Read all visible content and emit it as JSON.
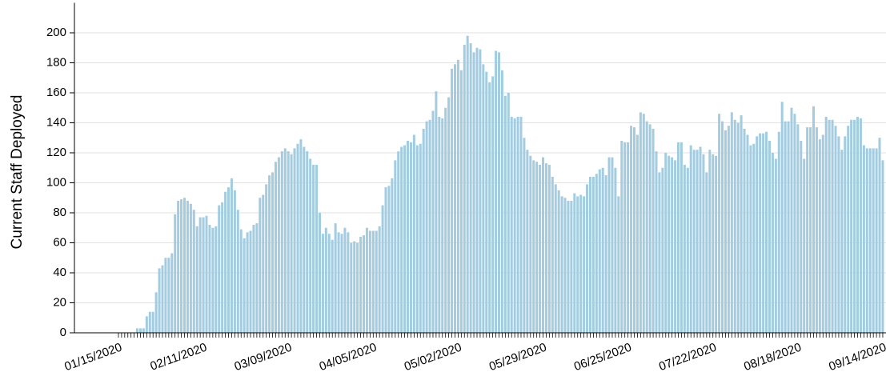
{
  "chart_data": {
    "type": "bar",
    "y_label": "Current Staff Deployed",
    "color": "#a3cce0",
    "grid": true,
    "ylim": [
      0,
      220
    ],
    "yticks": [
      0,
      20,
      40,
      60,
      80,
      100,
      120,
      140,
      160,
      180,
      200
    ],
    "categories": [
      "01/15/2020",
      null,
      null,
      null,
      null,
      null,
      null,
      null,
      null,
      null,
      null,
      null,
      null,
      null,
      null,
      null,
      null,
      null,
      null,
      null,
      null,
      null,
      null,
      null,
      null,
      null,
      null,
      "02/11/2020",
      null,
      null,
      null,
      null,
      null,
      null,
      null,
      null,
      null,
      null,
      null,
      null,
      null,
      null,
      null,
      null,
      null,
      null,
      null,
      null,
      null,
      null,
      null,
      null,
      null,
      null,
      "03/09/2020",
      null,
      null,
      null,
      null,
      null,
      null,
      null,
      null,
      null,
      null,
      null,
      null,
      null,
      null,
      null,
      null,
      null,
      null,
      null,
      null,
      null,
      null,
      null,
      null,
      null,
      null,
      "04/05/2020",
      null,
      null,
      null,
      null,
      null,
      null,
      null,
      null,
      null,
      null,
      null,
      null,
      null,
      null,
      null,
      null,
      null,
      null,
      null,
      null,
      null,
      null,
      null,
      null,
      null,
      null,
      "05/02/2020",
      null,
      null,
      null,
      null,
      null,
      null,
      null,
      null,
      null,
      null,
      null,
      null,
      null,
      null,
      null,
      null,
      null,
      null,
      null,
      null,
      null,
      null,
      null,
      null,
      null,
      null,
      "05/29/2020",
      null,
      null,
      null,
      null,
      null,
      null,
      null,
      null,
      null,
      null,
      null,
      null,
      null,
      null,
      null,
      null,
      null,
      null,
      null,
      null,
      null,
      null,
      null,
      null,
      null,
      null,
      "06/25/2020",
      null,
      null,
      null,
      null,
      null,
      null,
      null,
      null,
      null,
      null,
      null,
      null,
      null,
      null,
      null,
      null,
      null,
      null,
      null,
      null,
      null,
      null,
      null,
      null,
      null,
      null,
      "07/22/2020",
      null,
      null,
      null,
      null,
      null,
      null,
      null,
      null,
      null,
      null,
      null,
      null,
      null,
      null,
      null,
      null,
      null,
      null,
      null,
      null,
      null,
      null,
      null,
      null,
      null,
      null,
      "08/18/2020",
      null,
      null,
      null,
      null,
      null,
      null,
      null,
      null,
      null,
      null,
      null,
      null,
      null,
      null,
      null,
      null,
      null,
      null,
      null,
      null,
      null,
      null,
      null,
      null,
      null,
      null,
      "09/14/2020"
    ],
    "values": [
      0,
      0,
      0,
      0,
      0,
      0,
      3,
      3,
      3,
      11,
      14,
      14,
      27,
      43,
      45,
      50,
      50,
      53,
      79,
      88,
      89,
      90,
      88,
      86,
      82,
      71,
      77,
      77,
      78,
      72,
      70,
      71,
      85,
      87,
      94,
      97,
      103,
      95,
      82,
      69,
      63,
      67,
      68,
      72,
      73,
      90,
      92,
      99,
      105,
      107,
      114,
      117,
      121,
      123,
      121,
      119,
      123,
      126,
      129,
      124,
      121,
      116,
      112,
      112,
      80,
      66,
      70,
      66,
      62,
      73,
      67,
      66,
      70,
      67,
      60,
      61,
      60,
      64,
      65,
      70,
      68,
      68,
      68,
      71,
      85,
      97,
      98,
      103,
      115,
      121,
      124,
      125,
      128,
      127,
      132,
      125,
      126,
      136,
      141,
      142,
      148,
      161,
      144,
      143,
      150,
      157,
      176,
      179,
      182,
      175,
      192,
      198,
      193,
      187,
      190,
      189,
      179,
      174,
      167,
      171,
      188,
      187,
      175,
      158,
      160,
      144,
      143,
      144,
      144,
      130,
      122,
      118,
      115,
      114,
      112,
      117,
      113,
      112,
      104,
      99,
      95,
      91,
      90,
      88,
      88,
      93,
      91,
      92,
      91,
      99,
      104,
      104,
      106,
      109,
      110,
      105,
      117,
      117,
      110,
      91,
      128,
      127,
      127,
      138,
      137,
      132,
      147,
      146,
      141,
      139,
      136,
      121,
      107,
      110,
      120,
      118,
      117,
      115,
      127,
      127,
      112,
      110,
      125,
      122,
      122,
      124,
      119,
      107,
      122,
      119,
      118,
      146,
      141,
      135,
      138,
      147,
      142,
      140,
      145,
      136,
      132,
      125,
      126,
      131,
      133,
      133,
      134,
      128,
      120,
      116,
      134,
      154,
      141,
      141,
      150,
      146,
      139,
      128,
      116,
      137,
      137,
      151,
      137,
      129,
      132,
      144,
      142,
      142,
      138,
      131,
      122,
      131,
      138,
      142,
      142,
      144,
      143,
      125,
      123,
      123,
      123,
      123,
      130,
      115
    ]
  }
}
